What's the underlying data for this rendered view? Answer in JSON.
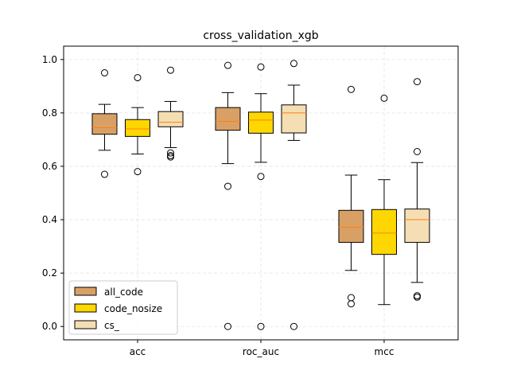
{
  "chart_data": {
    "type": "boxplot",
    "title": "cross_validation_xgb",
    "xlabel": "",
    "ylabel": "",
    "ylim": [
      -0.05,
      1.05
    ],
    "yticks": [
      "0.0",
      "0.2",
      "0.4",
      "0.6",
      "0.8",
      "1.0"
    ],
    "ytick_values": [
      0.0,
      0.2,
      0.4,
      0.6,
      0.8,
      1.0
    ],
    "categories": [
      "acc",
      "roc_auc",
      "mcc"
    ],
    "grid": true,
    "legend_position": "lower-left",
    "median_color": "#ff7f0e",
    "series": [
      {
        "name": "all_code",
        "color": "#d9a066",
        "boxes": [
          {
            "whislo": 0.66,
            "q1": 0.72,
            "med": 0.745,
            "q3": 0.797,
            "whishi": 0.832,
            "fliers": [
              0.57,
              0.95
            ]
          },
          {
            "whislo": 0.61,
            "q1": 0.735,
            "med": 0.768,
            "q3": 0.82,
            "whishi": 0.876,
            "fliers": [
              0.525,
              0.978,
              0.0
            ]
          },
          {
            "whislo": 0.21,
            "q1": 0.315,
            "med": 0.372,
            "q3": 0.435,
            "whishi": 0.567,
            "fliers": [
              0.108,
              0.085,
              0.888
            ]
          }
        ]
      },
      {
        "name": "code_nosize",
        "color": "#ffd700",
        "boxes": [
          {
            "whislo": 0.646,
            "q1": 0.712,
            "med": 0.74,
            "q3": 0.775,
            "whishi": 0.82,
            "fliers": [
              0.58,
              0.932
            ]
          },
          {
            "whislo": 0.615,
            "q1": 0.724,
            "med": 0.773,
            "q3": 0.803,
            "whishi": 0.872,
            "fliers": [
              0.562,
              0.972,
              0.0
            ]
          },
          {
            "whislo": 0.082,
            "q1": 0.27,
            "med": 0.35,
            "q3": 0.438,
            "whishi": 0.55,
            "fliers": [
              0.855
            ]
          }
        ]
      },
      {
        "name": "cs_",
        "color": "#f5deb3",
        "boxes": [
          {
            "whislo": 0.67,
            "q1": 0.748,
            "med": 0.765,
            "q3": 0.805,
            "whishi": 0.843,
            "fliers": [
              0.65,
              0.64,
              0.635,
              0.96
            ]
          },
          {
            "whislo": 0.697,
            "q1": 0.725,
            "med": 0.8,
            "q3": 0.83,
            "whishi": 0.904,
            "fliers": [
              0.985,
              0.0
            ]
          },
          {
            "whislo": 0.165,
            "q1": 0.315,
            "med": 0.4,
            "q3": 0.44,
            "whishi": 0.614,
            "fliers": [
              0.115,
              0.11,
              0.655,
              0.917
            ]
          }
        ]
      }
    ]
  }
}
